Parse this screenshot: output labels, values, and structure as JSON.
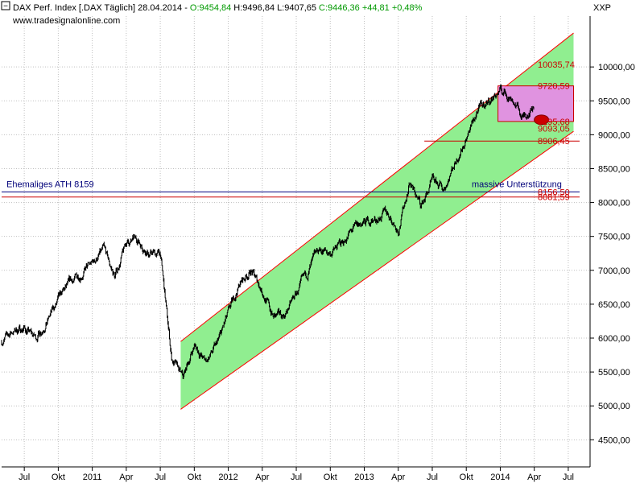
{
  "header": {
    "instrument": "DAX Perf. Index [.DAX  Täglich] 28.04.2014 - ",
    "open": "O:9454,84",
    "high": "H:9496,84",
    "low": "L:9407,65",
    "close": "C:9446,36 +44,81 +0,48%",
    "exchange": "XXP"
  },
  "watermark": "www.tradesignalonline.com",
  "colors": {
    "up": "#009900",
    "down": "#cc0000",
    "channel_fill": "#90ee90",
    "channel_line": "#ff0000",
    "box_fill": "#ee82ee",
    "level_line": "#cc0000",
    "ath_line": "#000080",
    "price": "#000000",
    "frame": "#000000"
  },
  "chart_data": {
    "type": "line",
    "title": "DAX Perf. Index [.DAX  Täglich] 28.04.2014",
    "ylim": [
      4100,
      10750
    ],
    "y_ticks": [
      "4500,00",
      "5000,00",
      "5500,00",
      "6000,00",
      "6500,00",
      "7000,00",
      "7500,00",
      "8000,00",
      "8500,00",
      "9000,00",
      "9500,00",
      "10000,00"
    ],
    "y_tick_values": [
      4500,
      5000,
      5500,
      6000,
      6500,
      7000,
      7500,
      8000,
      8500,
      9000,
      9500,
      10000
    ],
    "x_ticks": [
      "Jul",
      "Okt",
      "2011",
      "Apr",
      "Jul",
      "Okt",
      "2012",
      "Apr",
      "Jul",
      "Okt",
      "2013",
      "Apr",
      "Jul",
      "Okt",
      "2014",
      "Apr",
      "Jul"
    ],
    "x_tick_dates": [
      "2010-07",
      "2010-10",
      "2011-01",
      "2011-04",
      "2011-07",
      "2011-10",
      "2012-01",
      "2012-04",
      "2012-07",
      "2012-10",
      "2013-01",
      "2013-04",
      "2013-07",
      "2013-10",
      "2014-01",
      "2014-04",
      "2014-07"
    ],
    "x_range": [
      "2010-05",
      "2014-08"
    ],
    "series": [
      {
        "values_monthly": {
          "x": [
            "2010-05",
            "2010-06",
            "2010-07",
            "2010-08",
            "2010-09",
            "2010-10",
            "2010-11",
            "2010-12",
            "2011-01",
            "2011-02",
            "2011-03",
            "2011-04",
            "2011-05",
            "2011-06",
            "2011-07",
            "2011-08",
            "2011-09",
            "2011-10",
            "2011-11",
            "2011-12",
            "2012-01",
            "2012-02",
            "2012-03",
            "2012-04",
            "2012-05",
            "2012-06",
            "2012-07",
            "2012-08",
            "2012-09",
            "2012-10",
            "2012-11",
            "2012-12",
            "2013-01",
            "2013-02",
            "2013-03",
            "2013-04",
            "2013-05",
            "2013-06",
            "2013-07",
            "2013-08",
            "2013-09",
            "2013-10",
            "2013-11",
            "2013-12",
            "2014-01",
            "2014-02",
            "2014-03",
            "2014-04"
          ],
          "y": [
            5950,
            6100,
            6150,
            6000,
            6250,
            6550,
            6800,
            6950,
            7100,
            7300,
            6900,
            7400,
            7450,
            7250,
            7250,
            5700,
            5400,
            5900,
            5650,
            5900,
            6350,
            6800,
            7000,
            6700,
            6300,
            6350,
            6650,
            6950,
            7300,
            7250,
            7400,
            7600,
            7700,
            7750,
            7850,
            7600,
            8300,
            7950,
            8300,
            8200,
            8600,
            8950,
            9350,
            9500,
            9650,
            9550,
            9250,
            9450
          ]
        }
      }
    ],
    "annotations": {
      "channel": {
        "lower": [
          [
            "2011-08-25",
            4950
          ],
          [
            "2014-07-15",
            9050
          ]
        ],
        "upper": [
          [
            "2011-08-25",
            5950
          ],
          [
            "2014-07-15",
            10500
          ]
        ]
      },
      "box": {
        "from": "2013-12-25",
        "to": "2014-07-15",
        "top": 9720.59,
        "bottom": 9195.68
      },
      "marker": {
        "date": "2014-04-20",
        "value": 9220
      },
      "levels": [
        {
          "label": "10035,74",
          "value": 10035.74
        },
        {
          "label": "9720,59",
          "value": 9720.59
        },
        {
          "label": "9195,68",
          "value": 9195.68
        },
        {
          "label": "9093,05",
          "value": 9093.05
        },
        {
          "label": "8906,45",
          "value": 8906.45
        },
        {
          "label": "8156,50",
          "value": 8156.5
        },
        {
          "label": "8081,59",
          "value": 8081.59
        }
      ],
      "ath_label": "Ehemaliges ATH 8159",
      "support_label": "massive Unterstützung"
    }
  }
}
